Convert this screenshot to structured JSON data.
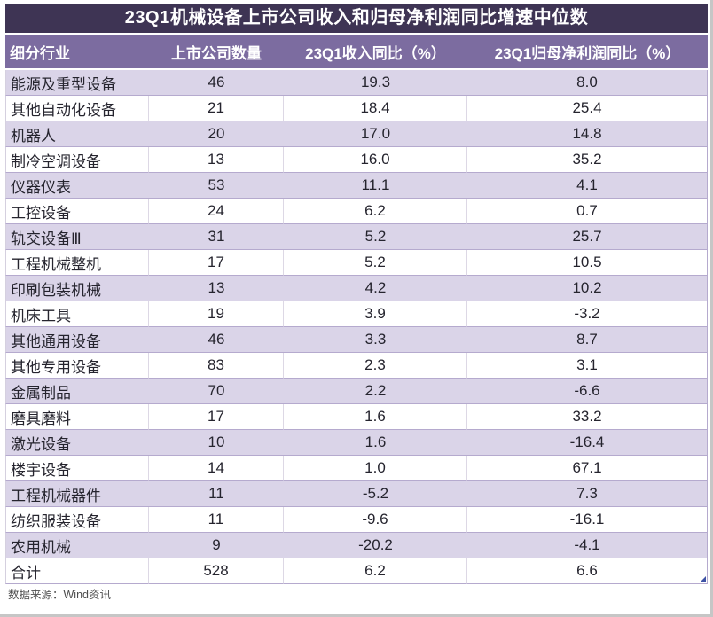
{
  "title": "23Q1机械设备上市公司收入和归母净利润同比增速中位数",
  "source_note": "数据来源：Wind资讯",
  "colors": {
    "title_bg": "#3e3454",
    "header_bg": "#7c6ca0",
    "row_alt_bg": "#dad4e8",
    "row_plain_bg": "#ffffff",
    "row_border": "#b5aace",
    "header_text": "#ffffff",
    "body_text": "#25242e",
    "comment_marker": "#3d52a5"
  },
  "chart_data": {
    "type": "table",
    "title": "23Q1机械设备上市公司收入和归母净利润同比增速中位数",
    "columns": [
      "细分行业",
      "上市公司数量",
      "23Q1收入同比（%）",
      "23Q1归母净利润同比（%）"
    ],
    "rows": [
      [
        "能源及重型设备",
        "46",
        "19.3",
        "8.0"
      ],
      [
        "其他自动化设备",
        "21",
        "18.4",
        "25.4"
      ],
      [
        "机器人",
        "20",
        "17.0",
        "14.8"
      ],
      [
        "制冷空调设备",
        "13",
        "16.0",
        "35.2"
      ],
      [
        "仪器仪表",
        "53",
        "11.1",
        "4.1"
      ],
      [
        "工控设备",
        "24",
        "6.2",
        "0.7"
      ],
      [
        "轨交设备Ⅲ",
        "31",
        "5.2",
        "25.7"
      ],
      [
        "工程机械整机",
        "17",
        "5.2",
        "10.5"
      ],
      [
        "印刷包装机械",
        "13",
        "4.2",
        "10.2"
      ],
      [
        "机床工具",
        "19",
        "3.9",
        "-3.2"
      ],
      [
        "其他通用设备",
        "46",
        "3.3",
        "8.7"
      ],
      [
        "其他专用设备",
        "83",
        "2.3",
        "3.1"
      ],
      [
        "金属制品",
        "70",
        "2.2",
        "-6.6"
      ],
      [
        "磨具磨料",
        "17",
        "1.6",
        "33.2"
      ],
      [
        "激光设备",
        "10",
        "1.6",
        "-16.4"
      ],
      [
        "楼宇设备",
        "14",
        "1.0",
        "67.1"
      ],
      [
        "工程机械器件",
        "11",
        "-5.2",
        "7.3"
      ],
      [
        "纺织服装设备",
        "11",
        "-9.6",
        "-16.1"
      ],
      [
        "农用机械",
        "9",
        "-20.2",
        "-4.1"
      ],
      [
        "合计",
        "528",
        "6.2",
        "6.6"
      ]
    ],
    "layout": {
      "striped": true,
      "stripe_pattern": "odd-rows-lavender",
      "column_alignment": [
        "left",
        "center",
        "center",
        "center"
      ]
    }
  }
}
